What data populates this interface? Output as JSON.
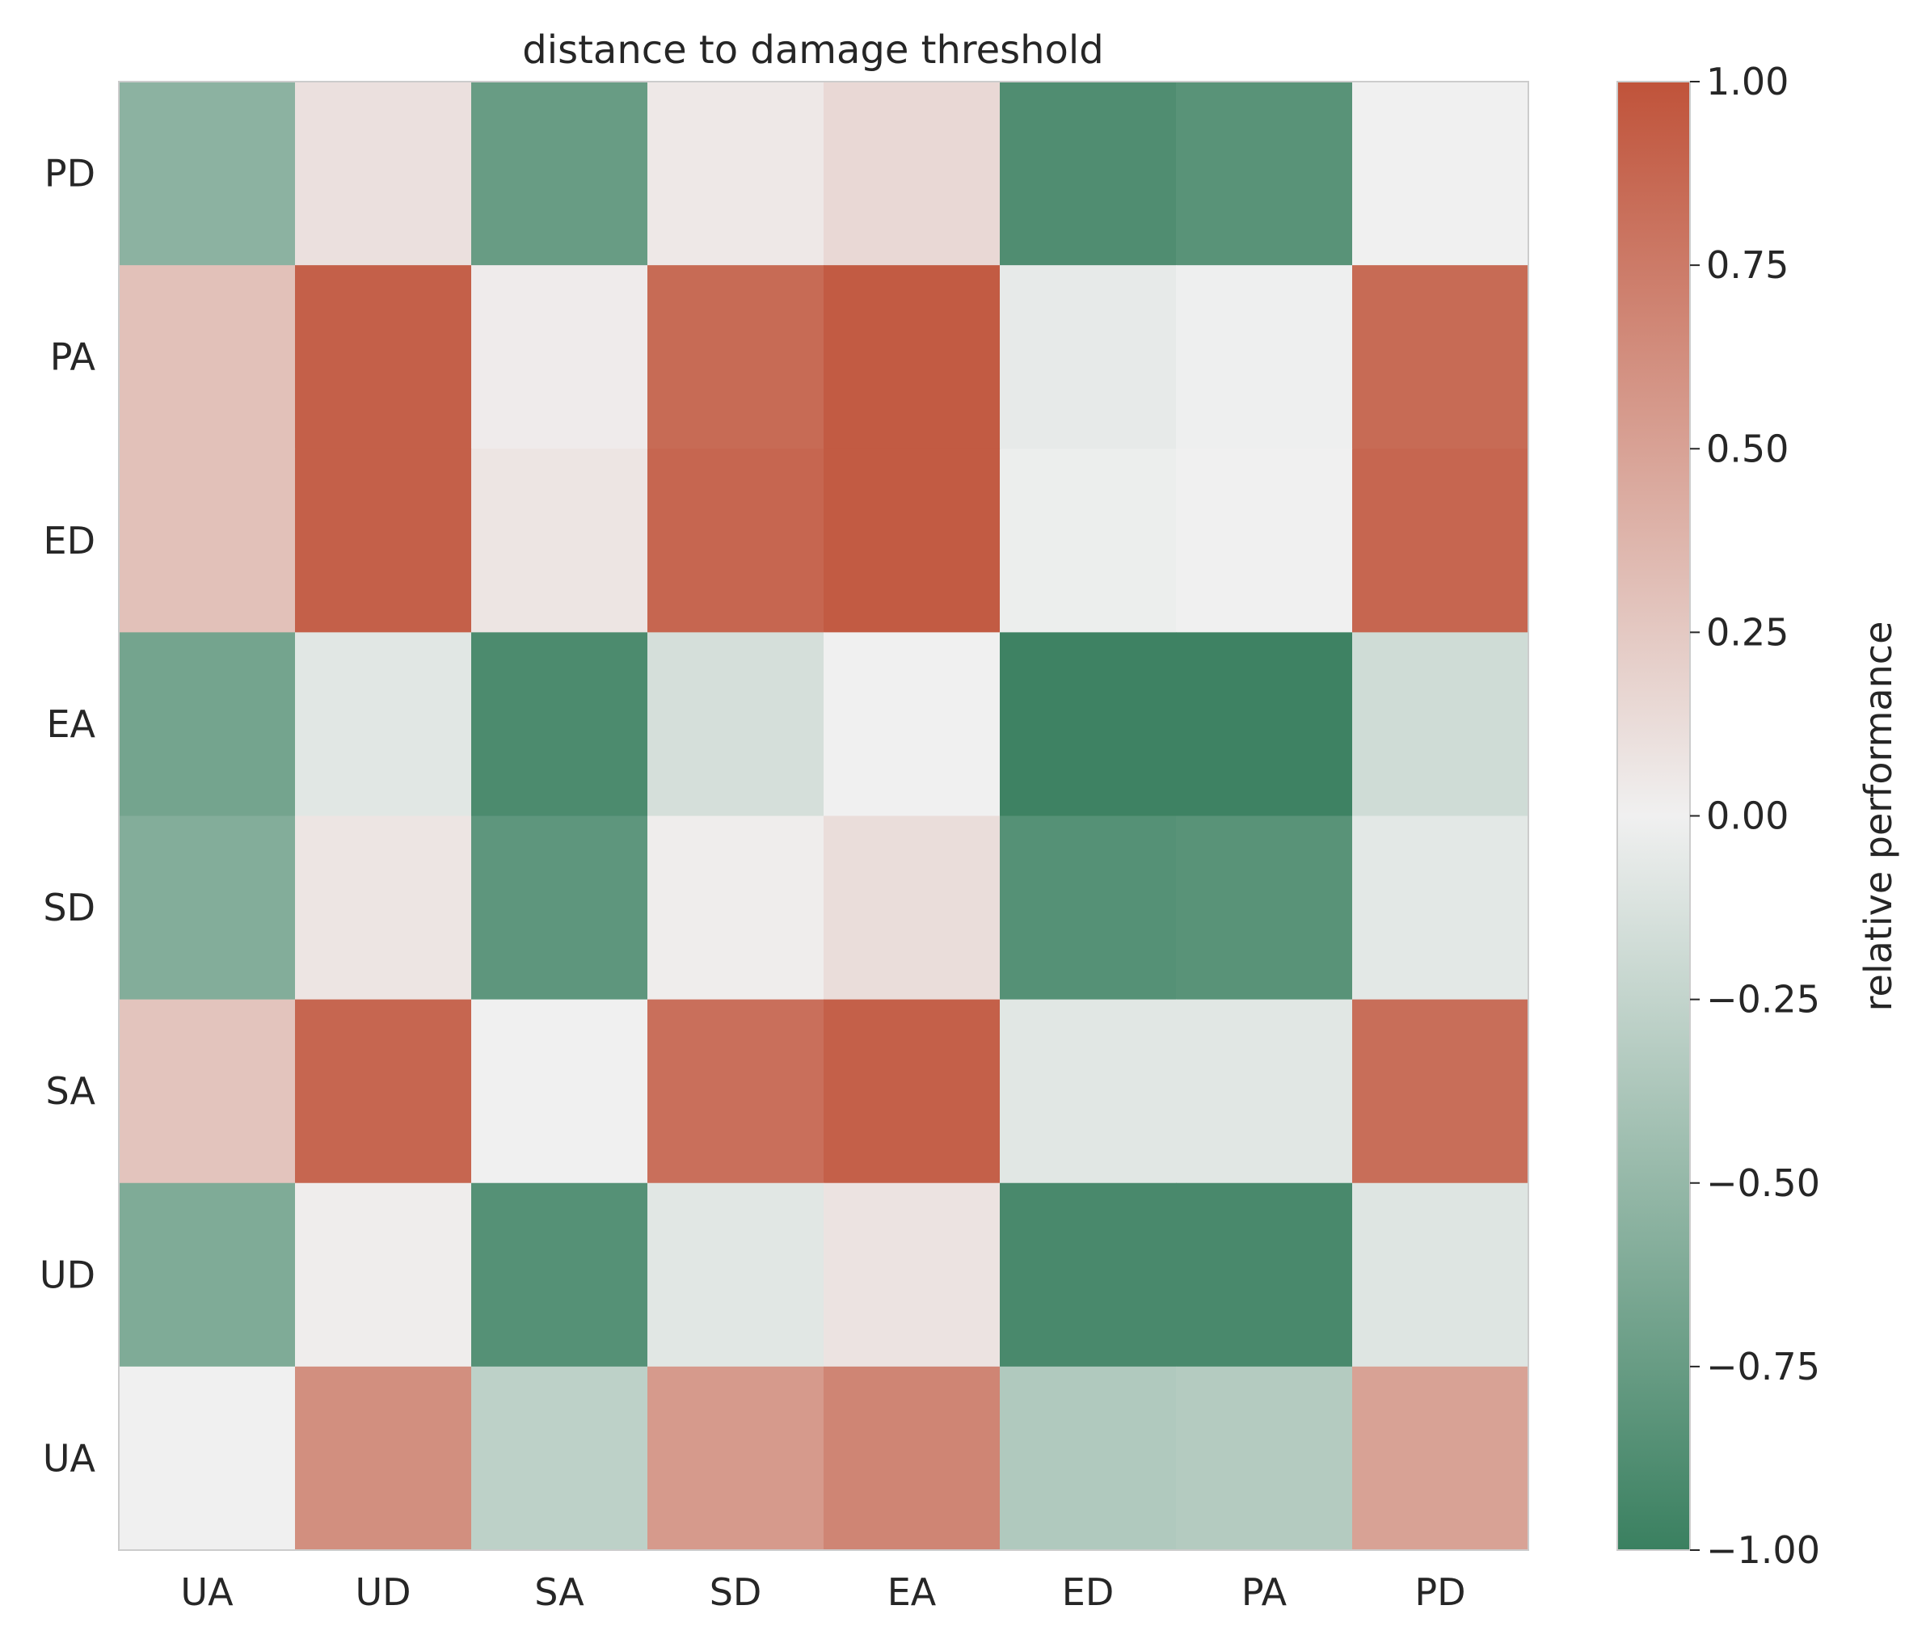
{
  "chart_data": {
    "type": "heatmap",
    "title": "distance to damage threshold",
    "x_categories": [
      "UA",
      "UD",
      "SA",
      "SD",
      "EA",
      "ED",
      "PA",
      "PD"
    ],
    "y_categories": [
      "PD",
      "PA",
      "ED",
      "EA",
      "SD",
      "SA",
      "UD",
      "UA"
    ],
    "values": [
      [
        -0.55,
        0.1,
        -0.75,
        0.05,
        0.15,
        -0.88,
        -0.83,
        0.0
      ],
      [
        0.3,
        0.92,
        0.03,
        0.85,
        0.95,
        -0.05,
        -0.01,
        0.85
      ],
      [
        0.3,
        0.92,
        0.07,
        0.88,
        0.95,
        -0.02,
        0.0,
        0.88
      ],
      [
        -0.68,
        -0.08,
        -0.9,
        -0.15,
        0.0,
        -0.98,
        -0.98,
        -0.18
      ],
      [
        -0.6,
        0.07,
        -0.8,
        0.02,
        0.12,
        -0.85,
        -0.83,
        -0.07
      ],
      [
        0.28,
        0.88,
        0.0,
        0.82,
        0.92,
        -0.08,
        -0.08,
        0.83
      ],
      [
        -0.62,
        0.02,
        -0.85,
        -0.08,
        0.08,
        -0.92,
        -0.92,
        -0.1
      ],
      [
        0.0,
        0.62,
        -0.28,
        0.55,
        0.68,
        -0.35,
        -0.33,
        0.5
      ]
    ],
    "colorbar": {
      "label": "relative performance",
      "vmin": -1.0,
      "vmax": 1.0,
      "ticks": [
        1.0,
        0.75,
        0.5,
        0.25,
        0.0,
        -0.25,
        -0.5,
        -0.75,
        -1.0
      ],
      "tick_labels": [
        "1.00",
        "0.75",
        "0.50",
        "0.25",
        "0.00",
        "−0.25",
        "−0.50",
        "−0.75",
        "−1.00"
      ]
    },
    "colors": {
      "low": "#3a8060",
      "mid": "#f0f0f0",
      "high": "#c0533a"
    }
  }
}
